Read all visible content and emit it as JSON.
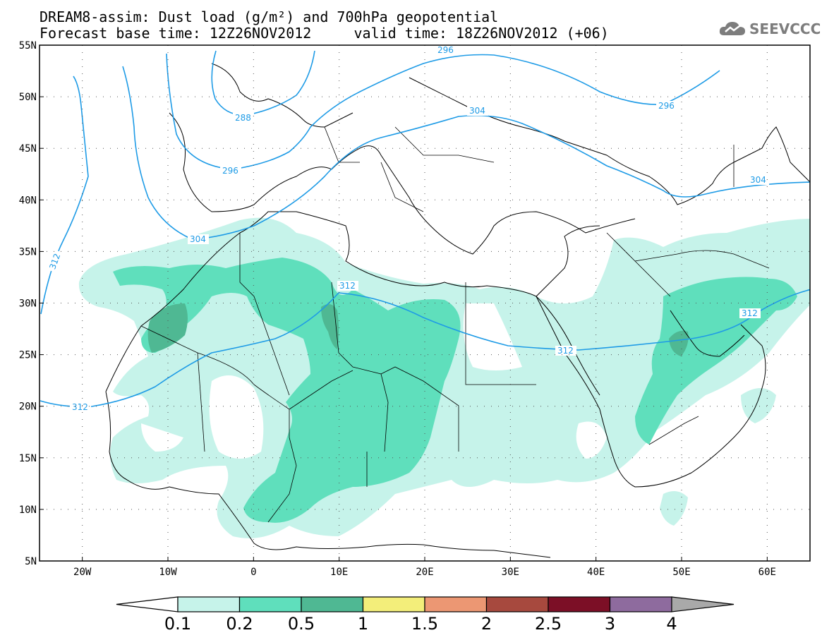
{
  "title": {
    "line1": "DREAM8-assim: Dust load (g/m²) and 700hPa geopotential",
    "line2": "Forecast base time: 12Z26NOV2012     valid time: 18Z26NOV2012 (+06)"
  },
  "logo": {
    "text": "SEEVCCC",
    "icon": "cloud-icon"
  },
  "axes": {
    "lat_labels": [
      "55N",
      "50N",
      "45N",
      "40N",
      "35N",
      "30N",
      "25N",
      "20N",
      "15N",
      "10N",
      "5N"
    ],
    "lon_labels": [
      "20W",
      "10W",
      "0",
      "10E",
      "20E",
      "30E",
      "40E",
      "50E",
      "60E"
    ]
  },
  "contours": {
    "labels": [
      "296",
      "288",
      "304",
      "296",
      "312",
      "312",
      "312",
      "312",
      "304",
      "296",
      "304"
    ]
  },
  "colorbar": {
    "ticks": [
      "0.1",
      "0.2",
      "0.5",
      "1",
      "1.5",
      "2",
      "2.5",
      "3",
      "4"
    ],
    "colors": [
      "#c6f3ea",
      "#5fdfbc",
      "#4fb893",
      "#f3ee7a",
      "#ec9773",
      "#a7493e",
      "#7c0f26",
      "#8e6b9e",
      "#a9a9a9"
    ]
  },
  "colors": {
    "contour_line": "#1e9be6",
    "dust_low": "#c6f3ea",
    "dust_mid": "#5fdfbc",
    "dust_high": "#4fb893",
    "coastline": "#000000"
  }
}
